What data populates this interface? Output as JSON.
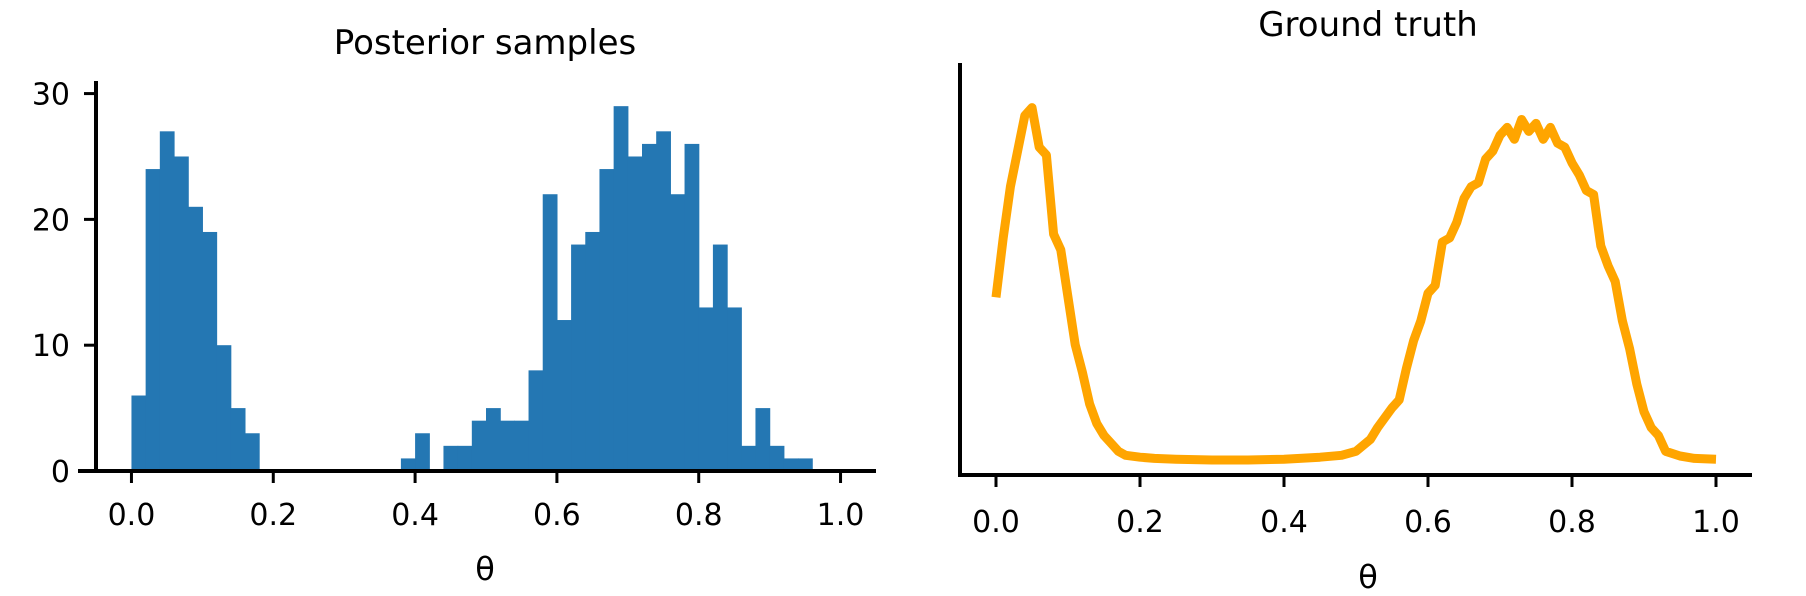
{
  "chart_data": [
    {
      "type": "bar",
      "title": "Posterior samples",
      "xlabel": "θ",
      "ylabel": "",
      "xlim": [
        -0.05,
        1.05
      ],
      "ylim": [
        0,
        31
      ],
      "xticks": [
        "0.0",
        "0.2",
        "0.4",
        "0.6",
        "0.8",
        "1.0"
      ],
      "yticks": [
        "0",
        "10",
        "20",
        "30"
      ],
      "bin_width": 0.02,
      "bin_edges_start": 0.0,
      "values": [
        6,
        24,
        27,
        25,
        21,
        19,
        10,
        5,
        3,
        0,
        0,
        0,
        0,
        0,
        0,
        0,
        0,
        0,
        0,
        1,
        3,
        0,
        2,
        2,
        4,
        5,
        4,
        4,
        8,
        22,
        12,
        18,
        19,
        24,
        29,
        25,
        26,
        27,
        22,
        26,
        13,
        18,
        13,
        2,
        5,
        2,
        1,
        1
      ],
      "color": "#2477b3",
      "grid": false,
      "spines": "left-bottom"
    },
    {
      "type": "line",
      "title": "Ground truth",
      "xlabel": "θ",
      "ylabel": "",
      "xlim": [
        -0.05,
        1.05
      ],
      "ylim": [
        0,
        1
      ],
      "xticks": [
        "0.0",
        "0.2",
        "0.4",
        "0.6",
        "0.8",
        "1.0"
      ],
      "yticks": [],
      "x": [
        0.0,
        0.01,
        0.02,
        0.03,
        0.04,
        0.05,
        0.06,
        0.07,
        0.08,
        0.09,
        0.1,
        0.11,
        0.12,
        0.13,
        0.14,
        0.15,
        0.16,
        0.17,
        0.18,
        0.2,
        0.22,
        0.25,
        0.3,
        0.35,
        0.4,
        0.45,
        0.48,
        0.5,
        0.52,
        0.53,
        0.55,
        0.56,
        0.57,
        0.58,
        0.59,
        0.6,
        0.61,
        0.62,
        0.63,
        0.64,
        0.65,
        0.66,
        0.67,
        0.68,
        0.69,
        0.7,
        0.71,
        0.72,
        0.73,
        0.74,
        0.75,
        0.76,
        0.77,
        0.78,
        0.79,
        0.8,
        0.81,
        0.82,
        0.83,
        0.84,
        0.85,
        0.86,
        0.87,
        0.88,
        0.89,
        0.9,
        0.91,
        0.92,
        0.93,
        0.95,
        0.97,
        1.0
      ],
      "y": [
        0.45,
        0.6,
        0.73,
        0.82,
        0.91,
        0.93,
        0.83,
        0.81,
        0.61,
        0.57,
        0.45,
        0.33,
        0.26,
        0.18,
        0.13,
        0.1,
        0.08,
        0.06,
        0.05,
        0.045,
        0.042,
        0.04,
        0.038,
        0.038,
        0.04,
        0.045,
        0.05,
        0.06,
        0.09,
        0.12,
        0.17,
        0.19,
        0.27,
        0.34,
        0.39,
        0.46,
        0.48,
        0.59,
        0.6,
        0.64,
        0.7,
        0.73,
        0.74,
        0.8,
        0.82,
        0.86,
        0.88,
        0.85,
        0.9,
        0.87,
        0.89,
        0.85,
        0.88,
        0.84,
        0.83,
        0.79,
        0.76,
        0.72,
        0.71,
        0.58,
        0.53,
        0.49,
        0.39,
        0.32,
        0.23,
        0.16,
        0.12,
        0.1,
        0.06,
        0.048,
        0.042,
        0.04
      ],
      "color": "#ffa500",
      "grid": false,
      "spines": "left-bottom"
    }
  ]
}
